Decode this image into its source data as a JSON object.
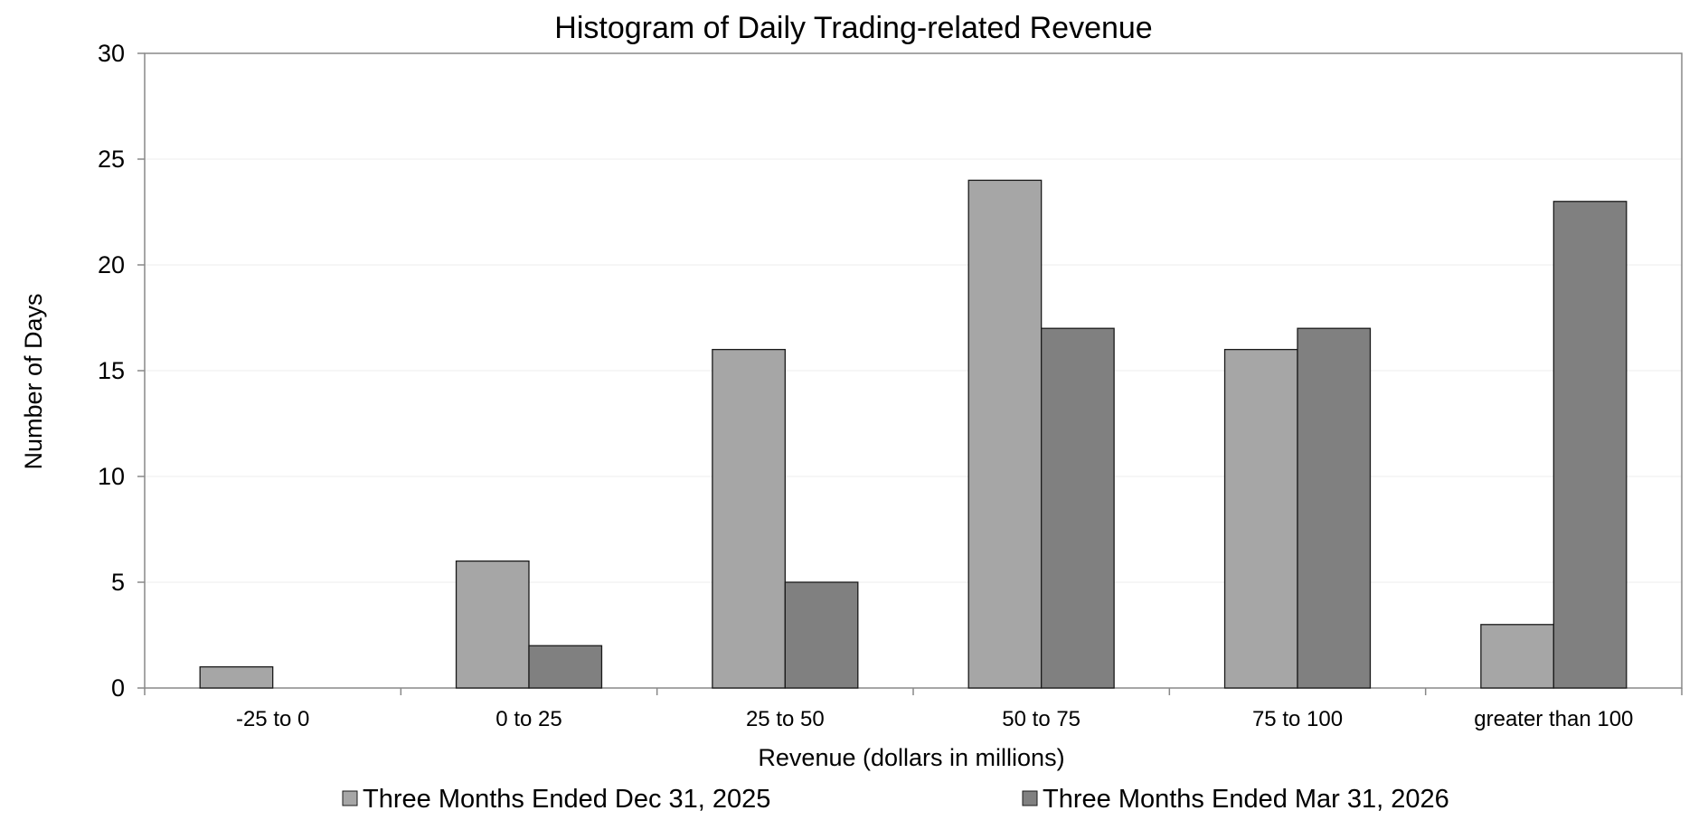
{
  "chart_data": {
    "type": "bar",
    "title": "Histogram of Daily Trading-related Revenue",
    "xlabel": "Revenue (dollars in millions)",
    "ylabel": "Number of Days",
    "categories": [
      "-25 to 0",
      "0 to 25",
      "25 to 50",
      "50 to 75",
      "75 to 100",
      "greater than 100"
    ],
    "series": [
      {
        "name": "Three Months Ended Dec 31, 2025",
        "values": [
          1,
          6,
          16,
          24,
          16,
          3
        ],
        "color": "#a6a6a6"
      },
      {
        "name": "Three Months Ended Mar 31, 2026",
        "values": [
          0,
          2,
          5,
          17,
          17,
          23
        ],
        "color": "#808080"
      }
    ],
    "ylim": [
      0,
      30
    ],
    "yticks": [
      0,
      5,
      10,
      15,
      20,
      25,
      30
    ],
    "grid": true,
    "legend": "bottom"
  }
}
